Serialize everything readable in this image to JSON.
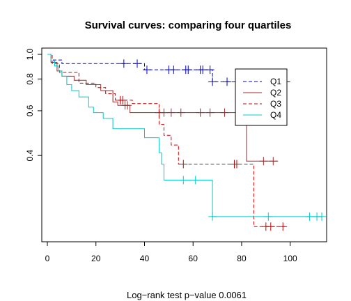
{
  "chart_data": {
    "type": "line",
    "title": "Survival curves: comparing four quartiles",
    "footnote": "Log−rank test p−value  0.0061",
    "xlim": [
      0,
      115
    ],
    "ylim": [
      0.2,
      1.0
    ],
    "y_scale": "log",
    "x_ticks": [
      "0",
      "20",
      "40",
      "60",
      "80",
      "100"
    ],
    "y_ticks": [
      "0.4",
      "0.6",
      "0.8",
      "1.0"
    ],
    "legend": {
      "position": "right",
      "entries": [
        "Q1",
        "Q2",
        "Q3",
        "Q4"
      ]
    },
    "series": [
      {
        "name": "Q1",
        "color": "#0000cc",
        "dash": "dashed",
        "steps": [
          [
            0,
            1.0
          ],
          [
            2,
            0.95
          ],
          [
            6,
            0.92
          ],
          [
            40,
            0.87
          ],
          [
            68,
            0.78
          ],
          [
            100,
            0.78
          ]
        ],
        "censor": [
          31.5,
          37,
          41,
          50,
          52,
          57,
          58,
          63,
          64,
          67,
          68,
          74,
          79,
          84,
          87,
          92,
          96
        ]
      },
      {
        "name": "Q2",
        "color": "#a52a2a",
        "dash": "solid",
        "steps": [
          [
            0,
            1.0
          ],
          [
            1.5,
            0.93
          ],
          [
            4,
            0.86
          ],
          [
            6,
            0.82
          ],
          [
            11,
            0.79
          ],
          [
            16,
            0.76
          ],
          [
            22,
            0.72
          ],
          [
            27,
            0.65
          ],
          [
            29,
            0.63
          ],
          [
            34,
            0.59
          ],
          [
            82,
            0.38
          ],
          [
            95,
            0.38
          ]
        ],
        "censor": [
          32,
          33,
          46,
          48,
          51,
          55,
          63,
          67,
          73,
          81,
          89,
          93
        ]
      },
      {
        "name": "Q3",
        "color": "#cc0000",
        "dash": "dashed",
        "steps": [
          [
            0,
            1.0
          ],
          [
            2,
            0.92
          ],
          [
            5,
            0.85
          ],
          [
            13,
            0.77
          ],
          [
            20,
            0.74
          ],
          [
            24,
            0.7
          ],
          [
            28,
            0.66
          ],
          [
            35,
            0.64
          ],
          [
            46,
            0.53
          ],
          [
            48,
            0.48
          ],
          [
            51,
            0.44
          ],
          [
            54,
            0.37
          ],
          [
            85,
            0.21
          ],
          [
            98,
            0.21
          ]
        ],
        "censor": [
          30,
          31,
          56,
          77,
          78,
          90,
          92,
          97
        ]
      },
      {
        "name": "Q4",
        "color": "#00cccc",
        "dash": "solid",
        "steps": [
          [
            0,
            1.0
          ],
          [
            1.5,
            0.94
          ],
          [
            3,
            0.9
          ],
          [
            4.5,
            0.86
          ],
          [
            6,
            0.82
          ],
          [
            8,
            0.76
          ],
          [
            10,
            0.72
          ],
          [
            13,
            0.68
          ],
          [
            17,
            0.62
          ],
          [
            19,
            0.59
          ],
          [
            23,
            0.56
          ],
          [
            27,
            0.51
          ],
          [
            40,
            0.47
          ],
          [
            46,
            0.41
          ],
          [
            47,
            0.37
          ],
          [
            48,
            0.32
          ],
          [
            68,
            0.23
          ],
          [
            113,
            0.23
          ]
        ],
        "censor": [
          56,
          61,
          68,
          91,
          108,
          111,
          113
        ]
      }
    ]
  }
}
